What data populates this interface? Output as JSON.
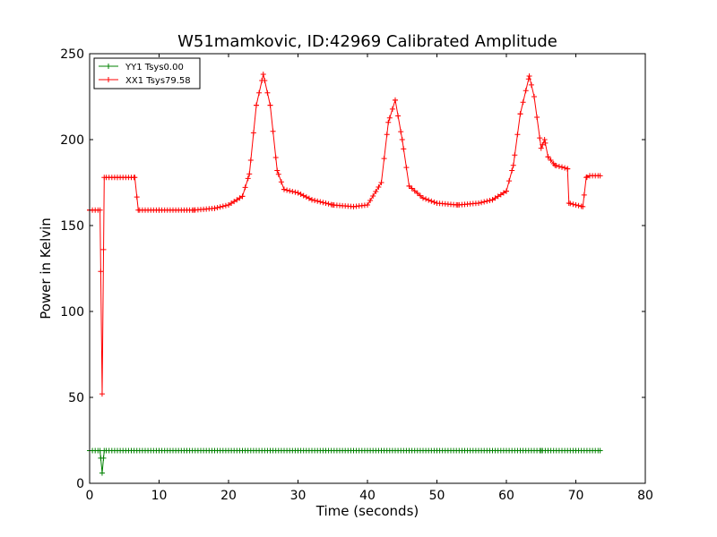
{
  "chart_data": {
    "type": "line",
    "title": "W51mamkovic, ID:42969 Calibrated Amplitude",
    "xlabel": "Time (seconds)",
    "ylabel": "Power in Kelvin",
    "xlim": [
      0,
      80
    ],
    "ylim": [
      0,
      250
    ],
    "xticks": [
      0,
      10,
      20,
      30,
      40,
      50,
      60,
      70,
      80
    ],
    "yticks": [
      0,
      50,
      100,
      150,
      200,
      250
    ],
    "grid": false,
    "legend_position": "top-left",
    "marker": "+",
    "series": [
      {
        "name": "YY1 Tsys0.00",
        "color": "#008000",
        "points": [
          [
            0,
            19
          ],
          [
            1.5,
            19
          ],
          [
            1.8,
            6
          ],
          [
            2.1,
            19
          ],
          [
            10,
            19
          ],
          [
            20,
            19
          ],
          [
            30,
            19
          ],
          [
            40,
            19
          ],
          [
            50,
            19
          ],
          [
            60,
            19
          ],
          [
            65,
            19
          ],
          [
            70,
            19
          ],
          [
            73.5,
            19
          ]
        ]
      },
      {
        "name": "XX1 Tsys79.58",
        "color": "#ff0000",
        "points": [
          [
            0,
            159
          ],
          [
            1.5,
            159
          ],
          [
            1.8,
            52
          ],
          [
            2.1,
            178
          ],
          [
            4,
            178
          ],
          [
            6.5,
            178
          ],
          [
            7,
            159
          ],
          [
            10,
            159
          ],
          [
            15,
            159
          ],
          [
            18,
            160
          ],
          [
            20,
            162
          ],
          [
            22,
            167
          ],
          [
            23,
            180
          ],
          [
            24,
            220
          ],
          [
            25,
            238
          ],
          [
            26,
            220
          ],
          [
            27,
            182
          ],
          [
            28,
            171
          ],
          [
            30,
            169
          ],
          [
            32,
            165
          ],
          [
            35,
            162
          ],
          [
            38,
            161
          ],
          [
            40,
            162
          ],
          [
            42,
            175
          ],
          [
            43,
            210
          ],
          [
            44,
            223
          ],
          [
            45,
            200
          ],
          [
            46,
            173
          ],
          [
            48,
            166
          ],
          [
            50,
            163
          ],
          [
            53,
            162
          ],
          [
            56,
            163
          ],
          [
            58,
            165
          ],
          [
            60,
            170
          ],
          [
            61,
            185
          ],
          [
            62,
            215
          ],
          [
            63.3,
            237
          ],
          [
            64,
            225
          ],
          [
            65,
            195
          ],
          [
            65.5,
            200
          ],
          [
            66,
            190
          ],
          [
            67,
            185
          ],
          [
            68,
            184
          ],
          [
            68.8,
            183
          ],
          [
            69,
            163
          ],
          [
            70,
            162
          ],
          [
            71,
            161
          ],
          [
            71.5,
            178
          ],
          [
            72,
            179
          ],
          [
            73.5,
            179
          ]
        ]
      }
    ]
  }
}
